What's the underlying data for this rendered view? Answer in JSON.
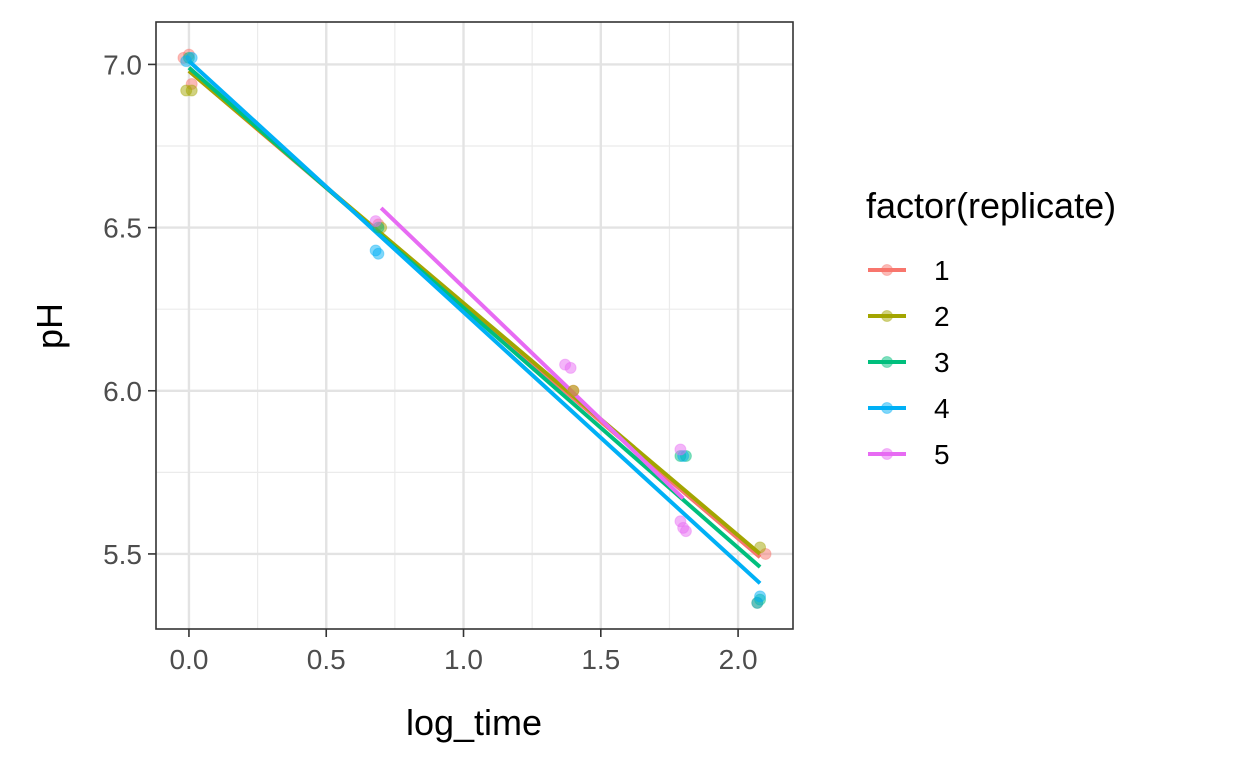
{
  "chart_data": {
    "type": "scatter",
    "xlabel": "log_time",
    "ylabel": "pH",
    "xlim": [
      -0.12,
      2.2
    ],
    "ylim": [
      5.27,
      7.13
    ],
    "x_ticks": [
      0.0,
      0.5,
      1.0,
      1.5,
      2.0
    ],
    "x_tick_labels": [
      "0.0",
      "0.5",
      "1.0",
      "1.5",
      "2.0"
    ],
    "y_ticks": [
      5.5,
      6.0,
      6.5,
      7.0
    ],
    "y_tick_labels": [
      "5.5",
      "6.0",
      "6.5",
      "7.0"
    ],
    "grid": true,
    "legend": {
      "title": "factor(replicate)",
      "position": "right"
    },
    "series": [
      {
        "name": "1",
        "color": "#F8766D",
        "points": [
          [
            -0.02,
            7.02
          ],
          [
            0.0,
            7.03
          ],
          [
            0.01,
            6.94
          ],
          [
            0.69,
            6.51
          ],
          [
            1.4,
            6.0
          ],
          [
            2.1,
            5.5
          ]
        ],
        "fit": [
          [
            0.0,
            6.98
          ],
          [
            2.08,
            5.49
          ]
        ]
      },
      {
        "name": "2",
        "color": "#A3A500",
        "points": [
          [
            -0.01,
            6.92
          ],
          [
            0.01,
            6.92
          ],
          [
            0.7,
            6.5
          ],
          [
            1.4,
            6.0
          ],
          [
            2.08,
            5.52
          ],
          [
            2.07,
            5.35
          ]
        ],
        "fit": [
          [
            0.0,
            6.98
          ],
          [
            2.08,
            5.5
          ]
        ]
      },
      {
        "name": "3",
        "color": "#00BF7D",
        "points": [
          [
            0.0,
            7.02
          ],
          [
            0.69,
            6.5
          ],
          [
            1.79,
            5.8
          ],
          [
            1.81,
            5.8
          ],
          [
            2.08,
            5.36
          ]
        ],
        "fit": [
          [
            0.0,
            6.99
          ],
          [
            2.08,
            5.46
          ]
        ]
      },
      {
        "name": "4",
        "color": "#00B0F6",
        "points": [
          [
            -0.01,
            7.01
          ],
          [
            0.01,
            7.02
          ],
          [
            0.68,
            6.43
          ],
          [
            0.69,
            6.42
          ],
          [
            1.8,
            5.8
          ],
          [
            2.08,
            5.37
          ],
          [
            2.07,
            5.35
          ]
        ],
        "fit": [
          [
            0.0,
            7.01
          ],
          [
            2.08,
            5.41
          ]
        ]
      },
      {
        "name": "5",
        "color": "#E76BF3",
        "points": [
          [
            0.68,
            6.52
          ],
          [
            1.37,
            6.08
          ],
          [
            1.39,
            6.07
          ],
          [
            1.79,
            5.82
          ],
          [
            1.79,
            5.6
          ],
          [
            1.8,
            5.58
          ],
          [
            1.81,
            5.57
          ]
        ],
        "fit": [
          [
            0.7,
            6.56
          ],
          [
            1.8,
            5.67
          ]
        ]
      }
    ]
  }
}
